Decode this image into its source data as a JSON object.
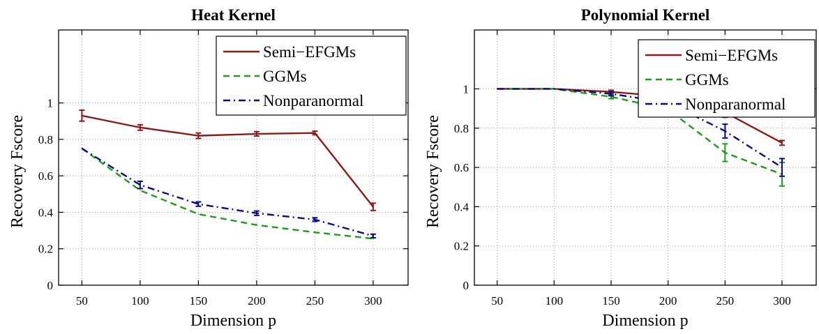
{
  "chart_data": [
    {
      "type": "line",
      "title": "Heat Kernel",
      "xlabel": "Dimension p",
      "ylabel": "Recovery Fscore",
      "x": [
        50,
        100,
        150,
        200,
        250,
        300
      ],
      "x_tick_labels": [
        "50",
        "100",
        "150",
        "200",
        "250",
        "300"
      ],
      "y_tick_labels": [
        "0",
        "0.2",
        "0.4",
        "0.6",
        "0.8",
        "1"
      ],
      "y_ticks": [
        0,
        0.2,
        0.4,
        0.6,
        0.8,
        1.0
      ],
      "xlim": [
        30,
        330
      ],
      "ylim": [
        0,
        1.4
      ],
      "grid": true,
      "legend": "top-right",
      "series": [
        {
          "name": "Semi−EFGMs",
          "color": "#8b1a1a",
          "dash": "solid",
          "values": [
            0.93,
            0.865,
            0.82,
            0.83,
            0.835,
            0.43
          ],
          "errors": [
            0.03,
            0.015,
            0.015,
            0.012,
            0.01,
            0.02
          ]
        },
        {
          "name": "GGMs",
          "color": "#1f9a1f",
          "dash": "dashed",
          "values": [
            0.75,
            0.52,
            0.39,
            0.33,
            0.29,
            0.255
          ],
          "errors": [
            0,
            0,
            0,
            0,
            0,
            0
          ]
        },
        {
          "name": "Nonparanormal",
          "color": "#0a0a80",
          "dash": "dashdot",
          "values": [
            0.75,
            0.55,
            0.445,
            0.395,
            0.36,
            0.27
          ],
          "errors": [
            0,
            0.02,
            0.012,
            0.012,
            0.01,
            0.01
          ]
        }
      ]
    },
    {
      "type": "line",
      "title": "Polynomial Kernel",
      "xlabel": "Dimension p",
      "ylabel": "Recovery Fscore",
      "x": [
        50,
        100,
        150,
        200,
        250,
        300
      ],
      "x_tick_labels": [
        "50",
        "100",
        "150",
        "200",
        "250",
        "300"
      ],
      "y_tick_labels": [
        "0",
        "0.2",
        "0.4",
        "0.6",
        "0.8",
        "1"
      ],
      "y_ticks": [
        0,
        0.2,
        0.4,
        0.6,
        0.8,
        1.0
      ],
      "xlim": [
        30,
        330
      ],
      "ylim": [
        0,
        1.3
      ],
      "grid": true,
      "legend": "top-right",
      "series": [
        {
          "name": "Semi−EFGMs",
          "color": "#8b1a1a",
          "dash": "solid",
          "values": [
            1.0,
            1.0,
            0.985,
            0.96,
            0.88,
            0.725
          ],
          "errors": [
            0,
            0,
            0.008,
            0.012,
            0.025,
            0.012
          ]
        },
        {
          "name": "GGMs",
          "color": "#1f9a1f",
          "dash": "dashed",
          "values": [
            1.0,
            1.0,
            0.96,
            0.895,
            0.675,
            0.565
          ],
          "errors": [
            0,
            0,
            0.01,
            0.025,
            0.045,
            0.06
          ]
        },
        {
          "name": "Nonparanormal",
          "color": "#0a0a80",
          "dash": "dashdot",
          "values": [
            1.0,
            1.0,
            0.975,
            0.93,
            0.785,
            0.6
          ],
          "errors": [
            0,
            0,
            0.01,
            0.02,
            0.035,
            0.045
          ]
        }
      ]
    }
  ]
}
